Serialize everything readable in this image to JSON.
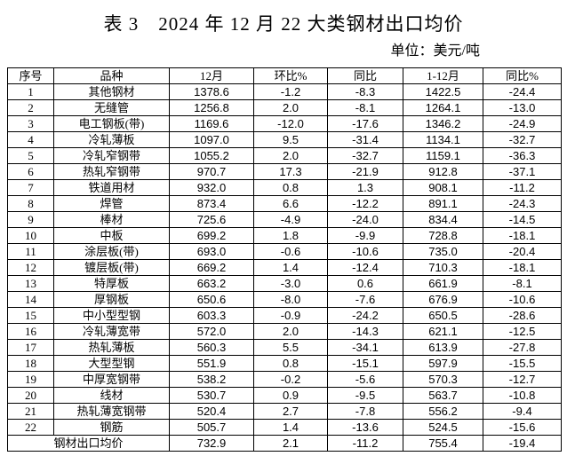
{
  "page": {
    "title": "表 3　2024 年 12 月 22 大类钢材出口均价",
    "unit_label": "单位：美元/吨"
  },
  "table": {
    "columns": [
      "序号",
      "品种",
      "12月",
      "环比%",
      "同比",
      "1-12月",
      "同比%"
    ],
    "rows": [
      [
        "1",
        "其他钢材",
        "1378.6",
        "-1.2",
        "-8.3",
        "1422.5",
        "-24.4"
      ],
      [
        "2",
        "无缝管",
        "1256.8",
        "2.0",
        "-8.1",
        "1264.1",
        "-13.0"
      ],
      [
        "3",
        "电工钢板(带)",
        "1169.6",
        "-12.0",
        "-17.6",
        "1346.2",
        "-24.9"
      ],
      [
        "4",
        "冷轧薄板",
        "1097.0",
        "9.5",
        "-31.4",
        "1134.1",
        "-32.7"
      ],
      [
        "5",
        "冷轧窄钢带",
        "1055.2",
        "2.0",
        "-32.7",
        "1159.1",
        "-36.3"
      ],
      [
        "6",
        "热轧窄钢带",
        "970.7",
        "17.3",
        "-21.9",
        "912.8",
        "-37.1"
      ],
      [
        "7",
        "铁道用材",
        "932.0",
        "0.8",
        "1.3",
        "908.1",
        "-11.2"
      ],
      [
        "8",
        "焊管",
        "873.4",
        "6.6",
        "-12.2",
        "891.1",
        "-24.3"
      ],
      [
        "9",
        "棒材",
        "725.6",
        "-4.9",
        "-24.0",
        "834.4",
        "-14.5"
      ],
      [
        "10",
        "中板",
        "699.2",
        "1.8",
        "-9.9",
        "728.8",
        "-18.1"
      ],
      [
        "11",
        "涂层板(带)",
        "693.0",
        "-0.6",
        "-10.6",
        "735.0",
        "-20.4"
      ],
      [
        "12",
        "镀层板(带)",
        "669.2",
        "1.4",
        "-12.4",
        "710.3",
        "-18.1"
      ],
      [
        "13",
        "特厚板",
        "663.2",
        "-3.0",
        "0.6",
        "661.9",
        "-8.1"
      ],
      [
        "14",
        "厚钢板",
        "650.6",
        "-8.0",
        "-7.6",
        "676.9",
        "-10.6"
      ],
      [
        "15",
        "中小型型钢",
        "603.3",
        "-0.9",
        "-24.2",
        "650.5",
        "-28.6"
      ],
      [
        "16",
        "冷轧薄宽带",
        "572.0",
        "2.0",
        "-14.3",
        "621.1",
        "-12.5"
      ],
      [
        "17",
        "热轧薄板",
        "560.3",
        "5.5",
        "-34.1",
        "613.9",
        "-27.8"
      ],
      [
        "18",
        "大型型钢",
        "551.9",
        "0.8",
        "-15.1",
        "597.9",
        "-15.5"
      ],
      [
        "19",
        "中厚宽钢带",
        "538.2",
        "-0.2",
        "-5.6",
        "570.3",
        "-12.7"
      ],
      [
        "20",
        "线材",
        "530.7",
        "0.9",
        "-9.5",
        "563.7",
        "-10.8"
      ],
      [
        "21",
        "热轧薄宽钢带",
        "520.4",
        "2.7",
        "-7.8",
        "556.2",
        "-9.4"
      ],
      [
        "22",
        "钢筋",
        "505.7",
        "1.4",
        "-13.6",
        "524.5",
        "-15.6"
      ]
    ],
    "summary": [
      "钢材出口均价",
      "732.9",
      "2.1",
      "-11.2",
      "755.4",
      "-19.4"
    ]
  }
}
